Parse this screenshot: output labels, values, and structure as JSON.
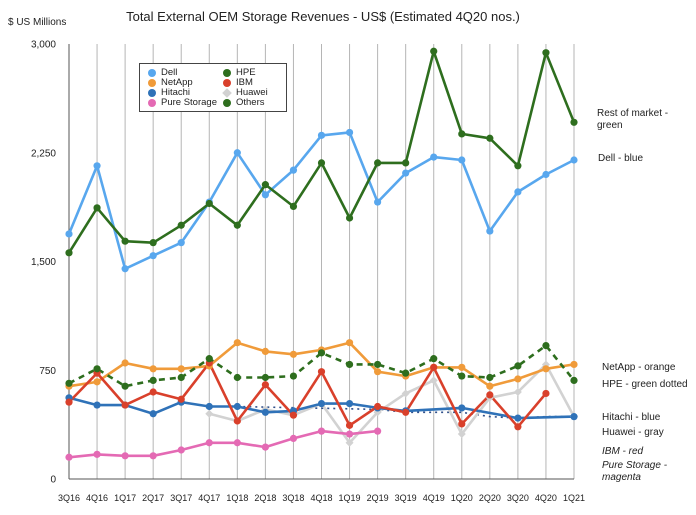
{
  "chart_data": {
    "type": "line",
    "title": "Total External OEM Storage Revenues - US$ (Estimated 4Q20 nos.)",
    "ylabel": "$ US Millions",
    "xlabel": "",
    "ylim": [
      0,
      3000
    ],
    "yticks": [
      0,
      750,
      1500,
      2250,
      3000
    ],
    "ytick_labels": [
      "0",
      "750",
      "1,500",
      "2,250",
      "3,000"
    ],
    "grid": "vertical",
    "legend_position": "top-left",
    "categories": [
      "3Q16",
      "4Q16",
      "1Q17",
      "2Q17",
      "3Q17",
      "4Q17",
      "1Q18",
      "2Q18",
      "3Q18",
      "4Q18",
      "1Q19",
      "2Q19",
      "3Q19",
      "4Q19",
      "1Q20",
      "2Q20",
      "3Q20",
      "4Q20",
      "1Q21"
    ],
    "series": [
      {
        "name": "Dell",
        "color": "#58a7ee",
        "style": "solid",
        "marker": "circle",
        "values": [
          1690,
          2160,
          1450,
          1540,
          1630,
          1910,
          2250,
          1960,
          2130,
          2370,
          2390,
          1910,
          2110,
          2220,
          2200,
          1710,
          1980,
          2100,
          2200
        ]
      },
      {
        "name": "NetApp",
        "color": "#f09b3a",
        "style": "solid",
        "marker": "circle",
        "values": [
          640,
          670,
          800,
          760,
          760,
          780,
          940,
          880,
          860,
          890,
          940,
          740,
          710,
          770,
          770,
          640,
          690,
          760,
          790
        ]
      },
      {
        "name": "Hitachi",
        "color": "#2f72b8",
        "style": "solid",
        "marker": "circle",
        "values": [
          560,
          510,
          510,
          450,
          530,
          500,
          500,
          460,
          470,
          520,
          520,
          490,
          470,
          null,
          490,
          null,
          420,
          null,
          430
        ]
      },
      {
        "name": "IBM",
        "color": "#d9402b",
        "style": "solid",
        "marker": "circle",
        "values": [
          530,
          730,
          510,
          600,
          550,
          800,
          400,
          650,
          440,
          740,
          370,
          500,
          460,
          770,
          380,
          580,
          360,
          590,
          null
        ]
      },
      {
        "name": "Pure Storage",
        "color": "#e46ab4",
        "style": "solid",
        "marker": "circle",
        "values": [
          150,
          170,
          160,
          160,
          200,
          250,
          250,
          220,
          280,
          330,
          310,
          330,
          null,
          null,
          null,
          null,
          null,
          null,
          null
        ]
      },
      {
        "name": "HPE",
        "color": "#2e6e1e",
        "style": "solid",
        "marker": "circle",
        "values": [
          1560,
          1870,
          1640,
          1630,
          1750,
          1900,
          1750,
          2030,
          1880,
          2180,
          1800,
          2180,
          2180,
          2950,
          2380,
          2350,
          2160,
          2940,
          2460
        ]
      },
      {
        "name": "Huawei",
        "color": "#d2d2d2",
        "style": "solid",
        "marker": "diamond",
        "values": [
          null,
          null,
          null,
          null,
          null,
          450,
          400,
          480,
          440,
          520,
          250,
          460,
          590,
          680,
          310,
          560,
          600,
          790,
          430
        ]
      },
      {
        "name": "Others",
        "color": "#2e6e1e",
        "style": "dashed",
        "marker": "circle",
        "values": [
          660,
          760,
          640,
          680,
          700,
          830,
          700,
          700,
          710,
          870,
          790,
          790,
          730,
          830,
          710,
          700,
          780,
          920,
          680
        ]
      }
    ],
    "extra_series": [
      {
        "name": "",
        "color": "#2f4f8a",
        "style": "dotted",
        "marker": "none",
        "values": [
          null,
          null,
          null,
          null,
          null,
          null,
          500,
          null,
          null,
          null,
          null,
          480,
          460,
          460,
          460,
          430,
          420,
          430,
          430
        ]
      }
    ]
  },
  "legend": {
    "items": [
      {
        "label": "Dell",
        "color": "#58a7ee",
        "shape": "circle"
      },
      {
        "label": "HPE",
        "color": "#2e6e1e",
        "shape": "circle"
      },
      {
        "label": "NetApp",
        "color": "#f09b3a",
        "shape": "circle"
      },
      {
        "label": "IBM",
        "color": "#d9402b",
        "shape": "circle"
      },
      {
        "label": "Hitachi",
        "color": "#2f72b8",
        "shape": "circle"
      },
      {
        "label": "Huawei",
        "color": "#d2d2d2",
        "shape": "diamond"
      },
      {
        "label": "Pure Storage",
        "color": "#e46ab4",
        "shape": "circle"
      },
      {
        "label": "Others",
        "color": "#2e6e1e",
        "shape": "circle"
      }
    ]
  },
  "annotations": {
    "rest_of_market": "Rest of market -\ngreen",
    "dell": "Dell - blue",
    "netapp": "NetApp - orange",
    "hpe": "HPE - green dotted",
    "hitachi": "Hitachi - blue",
    "huawei": "Huawei - gray",
    "ibm": "IBM - red",
    "pure": "Pure Storage -\nmagenta"
  }
}
